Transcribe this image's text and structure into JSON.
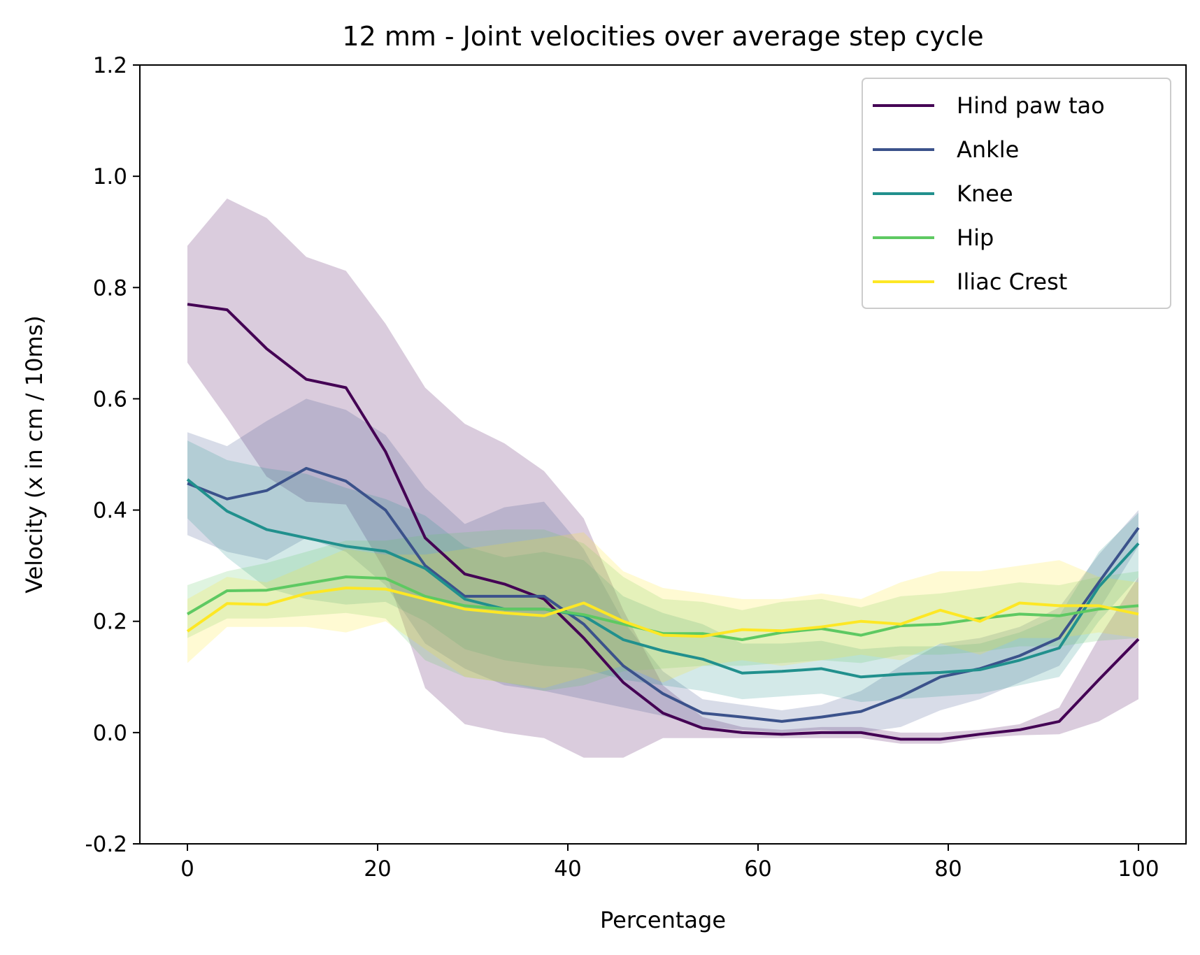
{
  "chart_data": {
    "type": "line",
    "title": "12 mm - Joint velocities over average step cycle",
    "xlabel": "Percentage",
    "ylabel": "Velocity (x in cm / 10ms)",
    "xlim": [
      -5,
      105
    ],
    "ylim": [
      -0.2,
      1.2
    ],
    "xticks": [
      0,
      20,
      40,
      60,
      80,
      100
    ],
    "xtick_labels": [
      "0",
      "20",
      "40",
      "60",
      "80",
      "100"
    ],
    "yticks": [
      -0.2,
      0.0,
      0.2,
      0.4,
      0.6,
      0.8,
      1.0,
      1.2
    ],
    "ytick_labels": [
      "-0.2",
      "0.0",
      "0.2",
      "0.4",
      "0.6",
      "0.8",
      "1.0",
      "1.2"
    ],
    "grid": false,
    "legend_position": "top-right",
    "x": [
      0,
      4.17,
      8.33,
      12.5,
      16.67,
      20.83,
      25,
      29.17,
      33.33,
      37.5,
      41.67,
      45.83,
      50,
      54.17,
      58.33,
      62.5,
      66.67,
      70.83,
      75,
      79.17,
      83.33,
      87.5,
      91.67,
      95.83,
      100
    ],
    "series": [
      {
        "name": "Hind paw tao",
        "color": "#440154",
        "values": [
          0.77,
          0.76,
          0.69,
          0.635,
          0.62,
          0.505,
          0.35,
          0.285,
          0.267,
          0.24,
          0.17,
          0.09,
          0.035,
          0.008,
          0.0,
          -0.003,
          0.0,
          0.0,
          -0.012,
          -0.012,
          -0.003,
          0.005,
          0.02,
          0.095,
          0.168
        ],
        "lower": [
          0.665,
          0.565,
          0.46,
          0.415,
          0.41,
          0.29,
          0.08,
          0.015,
          0.0,
          -0.01,
          -0.045,
          -0.045,
          -0.01,
          -0.01,
          -0.01,
          -0.01,
          -0.01,
          -0.01,
          -0.02,
          -0.02,
          -0.01,
          -0.005,
          -0.003,
          0.02,
          0.06
        ],
        "upper": [
          0.875,
          0.96,
          0.925,
          0.855,
          0.83,
          0.735,
          0.62,
          0.555,
          0.52,
          0.47,
          0.385,
          0.22,
          0.085,
          0.028,
          0.01,
          0.005,
          0.01,
          0.01,
          0.0,
          0.0,
          0.005,
          0.015,
          0.045,
          0.17,
          0.28
        ]
      },
      {
        "name": "Ankle",
        "color": "#3b528b",
        "values": [
          0.448,
          0.42,
          0.435,
          0.475,
          0.452,
          0.4,
          0.3,
          0.245,
          0.245,
          0.245,
          0.195,
          0.12,
          0.07,
          0.035,
          0.028,
          0.02,
          0.028,
          0.038,
          0.065,
          0.1,
          0.115,
          0.138,
          0.17,
          0.27,
          0.368
        ],
        "lower": [
          0.355,
          0.325,
          0.31,
          0.35,
          0.325,
          0.265,
          0.16,
          0.115,
          0.085,
          0.075,
          0.06,
          0.045,
          0.03,
          0.01,
          0.005,
          0.0,
          0.005,
          0.0,
          0.01,
          0.04,
          0.06,
          0.09,
          0.12,
          0.22,
          0.335
        ],
        "upper": [
          0.54,
          0.515,
          0.56,
          0.6,
          0.58,
          0.535,
          0.44,
          0.375,
          0.405,
          0.415,
          0.33,
          0.2,
          0.11,
          0.06,
          0.05,
          0.04,
          0.05,
          0.075,
          0.12,
          0.16,
          0.17,
          0.19,
          0.225,
          0.32,
          0.4
        ]
      },
      {
        "name": "Knee",
        "color": "#21908d",
        "values": [
          0.455,
          0.398,
          0.365,
          0.35,
          0.335,
          0.326,
          0.295,
          0.24,
          0.222,
          0.222,
          0.21,
          0.167,
          0.147,
          0.132,
          0.107,
          0.11,
          0.115,
          0.1,
          0.105,
          0.108,
          0.113,
          0.13,
          0.152,
          0.262,
          0.34
        ],
        "lower": [
          0.385,
          0.315,
          0.26,
          0.24,
          0.23,
          0.235,
          0.2,
          0.15,
          0.13,
          0.12,
          0.115,
          0.095,
          0.085,
          0.075,
          0.06,
          0.065,
          0.07,
          0.055,
          0.06,
          0.065,
          0.07,
          0.085,
          0.1,
          0.2,
          0.28
        ],
        "upper": [
          0.525,
          0.49,
          0.475,
          0.465,
          0.44,
          0.42,
          0.39,
          0.335,
          0.315,
          0.325,
          0.31,
          0.245,
          0.215,
          0.195,
          0.16,
          0.16,
          0.165,
          0.15,
          0.155,
          0.155,
          0.16,
          0.18,
          0.21,
          0.325,
          0.395
        ]
      },
      {
        "name": "Hip",
        "color": "#5ec962",
        "values": [
          0.213,
          0.255,
          0.256,
          0.268,
          0.28,
          0.277,
          0.245,
          0.228,
          0.222,
          0.222,
          0.212,
          0.195,
          0.178,
          0.178,
          0.167,
          0.18,
          0.187,
          0.175,
          0.192,
          0.195,
          0.205,
          0.213,
          0.21,
          0.222,
          0.228
        ],
        "lower": [
          0.17,
          0.205,
          0.205,
          0.21,
          0.215,
          0.205,
          0.13,
          0.1,
          0.09,
          0.075,
          0.085,
          0.11,
          0.115,
          0.12,
          0.12,
          0.125,
          0.13,
          0.125,
          0.14,
          0.14,
          0.145,
          0.155,
          0.155,
          0.165,
          0.17
        ],
        "upper": [
          0.265,
          0.29,
          0.305,
          0.325,
          0.345,
          0.345,
          0.355,
          0.36,
          0.365,
          0.365,
          0.34,
          0.28,
          0.24,
          0.235,
          0.22,
          0.235,
          0.24,
          0.225,
          0.245,
          0.25,
          0.26,
          0.27,
          0.265,
          0.28,
          0.29
        ]
      },
      {
        "name": "Iliac Crest",
        "color": "#fde725",
        "values": [
          0.182,
          0.232,
          0.23,
          0.25,
          0.26,
          0.258,
          0.24,
          0.222,
          0.215,
          0.21,
          0.233,
          0.2,
          0.175,
          0.173,
          0.185,
          0.183,
          0.19,
          0.2,
          0.195,
          0.22,
          0.2,
          0.233,
          0.228,
          0.228,
          0.213
        ],
        "lower": [
          0.125,
          0.19,
          0.19,
          0.19,
          0.18,
          0.2,
          0.15,
          0.1,
          0.09,
          0.08,
          0.1,
          0.12,
          0.09,
          0.12,
          0.13,
          0.12,
          0.13,
          0.14,
          0.13,
          0.16,
          0.14,
          0.17,
          0.17,
          0.18,
          0.17
        ],
        "upper": [
          0.24,
          0.28,
          0.27,
          0.3,
          0.33,
          0.32,
          0.32,
          0.33,
          0.34,
          0.35,
          0.36,
          0.29,
          0.26,
          0.25,
          0.24,
          0.24,
          0.25,
          0.24,
          0.27,
          0.29,
          0.29,
          0.3,
          0.31,
          0.28,
          0.27
        ]
      }
    ]
  }
}
